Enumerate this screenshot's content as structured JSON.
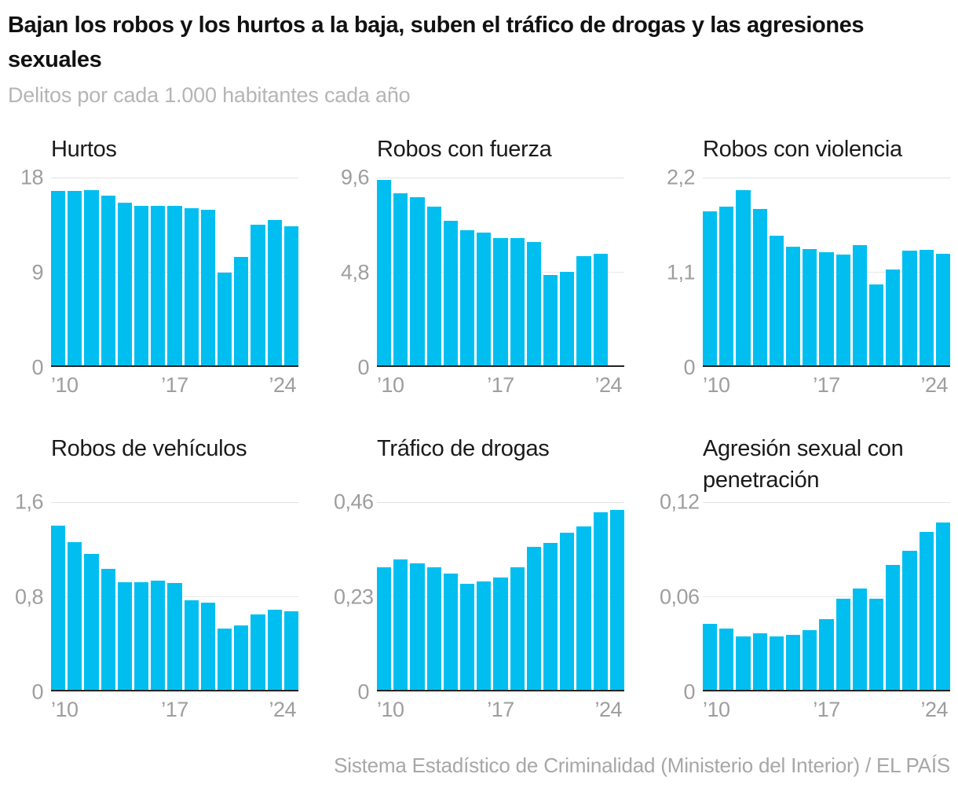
{
  "header": {
    "title": "Bajan los robos y los hurtos a la baja, suben el tráfico de drogas y las agresiones sexuales",
    "subtitle": "Delitos por cada 1.000 habitantes cada año"
  },
  "footer": {
    "source": "Sistema Estadístico de Criminalidad (Ministerio del Interior) / EL PAÍS"
  },
  "colors": {
    "bar_accent": "#00BFF0",
    "axis_line": "#222222",
    "gridline_max": "#e2e2e2",
    "gridline_mid": "#e9e9e9",
    "tick_label": "#9e9e9e",
    "title_text": "#111111",
    "subtitle_text": "#b5b5b5",
    "source_text": "#a7a7a7"
  },
  "chart_data": [
    {
      "type": "bar",
      "title": "Hurtos",
      "years": [
        2010,
        2011,
        2012,
        2013,
        2014,
        2015,
        2016,
        2017,
        2018,
        2019,
        2020,
        2021,
        2022,
        2023,
        2024
      ],
      "values": [
        16.7,
        16.7,
        16.8,
        16.3,
        15.6,
        15.3,
        15.3,
        15.3,
        15.1,
        14.9,
        8.9,
        10.4,
        13.5,
        13.9,
        13.3
      ],
      "ylim": [
        0,
        18
      ],
      "ymax": 18,
      "ytick_labels": [
        "18",
        "9",
        "0"
      ],
      "xtick_labels": [
        "’10",
        "’17",
        "’24"
      ],
      "grid": "horizontal at max and mid",
      "legend": "none"
    },
    {
      "type": "bar",
      "title": "Robos con fuerza",
      "years": [
        2010,
        2011,
        2012,
        2013,
        2014,
        2015,
        2016,
        2017,
        2018,
        2019,
        2020,
        2021,
        2022,
        2023,
        2024
      ],
      "values": [
        9.5,
        8.8,
        8.6,
        8.1,
        7.4,
        6.9,
        6.8,
        6.5,
        6.5,
        6.3,
        4.6,
        4.8,
        5.6,
        5.7,
        null
      ],
      "ylim": [
        0,
        9.6
      ],
      "ymax": 9.6,
      "ytick_labels": [
        "9,6",
        "4,8",
        "0"
      ],
      "xtick_labels": [
        "’10",
        "’17",
        "’24"
      ],
      "grid": "horizontal at max and mid",
      "legend": "none"
    },
    {
      "type": "bar",
      "title": "Robos con violencia",
      "years": [
        2010,
        2011,
        2012,
        2013,
        2014,
        2015,
        2016,
        2017,
        2018,
        2019,
        2020,
        2021,
        2022,
        2023,
        2024
      ],
      "values": [
        1.8,
        1.86,
        2.05,
        1.83,
        1.52,
        1.39,
        1.36,
        1.33,
        1.3,
        1.41,
        0.95,
        1.12,
        1.34,
        1.35,
        1.31
      ],
      "ylim": [
        0,
        2.2
      ],
      "ymax": 2.2,
      "ytick_labels": [
        "2,2",
        "1,1",
        "0"
      ],
      "xtick_labels": [
        "’10",
        "’17",
        "’24"
      ],
      "grid": "horizontal at max and mid",
      "legend": "none"
    },
    {
      "type": "bar",
      "title": "Robos de vehículos",
      "years": [
        2010,
        2011,
        2012,
        2013,
        2014,
        2015,
        2016,
        2017,
        2018,
        2019,
        2020,
        2021,
        2022,
        2023,
        2024
      ],
      "values": [
        1.4,
        1.26,
        1.16,
        1.03,
        0.92,
        0.92,
        0.93,
        0.91,
        0.76,
        0.74,
        0.52,
        0.55,
        0.64,
        0.68,
        0.67
      ],
      "ylim": [
        0,
        1.6
      ],
      "ymax": 1.6,
      "ytick_labels": [
        "1,6",
        "0,8",
        "0"
      ],
      "xtick_labels": [
        "’10",
        "’17",
        "’24"
      ],
      "grid": "horizontal at max and mid",
      "legend": "none"
    },
    {
      "type": "bar",
      "title": "Tráfico de drogas",
      "years": [
        2010,
        2011,
        2012,
        2013,
        2014,
        2015,
        2016,
        2017,
        2018,
        2019,
        2020,
        2021,
        2022,
        2023,
        2024
      ],
      "values": [
        0.3,
        0.32,
        0.31,
        0.3,
        0.285,
        0.26,
        0.265,
        0.275,
        0.3,
        0.35,
        0.36,
        0.385,
        0.4,
        0.435,
        0.44
      ],
      "ylim": [
        0,
        0.46
      ],
      "ymax": 0.46,
      "ytick_labels": [
        "0,46",
        "0,23",
        "0"
      ],
      "xtick_labels": [
        "’10",
        "’17",
        "’24"
      ],
      "grid": "horizontal at max and mid",
      "legend": "none"
    },
    {
      "type": "bar",
      "title": "Agresión sexual con penetración",
      "years": [
        2010,
        2011,
        2012,
        2013,
        2014,
        2015,
        2016,
        2017,
        2018,
        2019,
        2020,
        2021,
        2022,
        2023,
        2024
      ],
      "values": [
        0.042,
        0.039,
        0.034,
        0.036,
        0.034,
        0.035,
        0.038,
        0.045,
        0.058,
        0.065,
        0.058,
        0.08,
        0.089,
        0.101,
        0.107
      ],
      "ylim": [
        0,
        0.12
      ],
      "ymax": 0.12,
      "ytick_labels": [
        "0,12",
        "0,06",
        "0"
      ],
      "xtick_labels": [
        "’10",
        "’17",
        "’24"
      ],
      "grid": "horizontal at max and mid",
      "legend": "none"
    }
  ]
}
